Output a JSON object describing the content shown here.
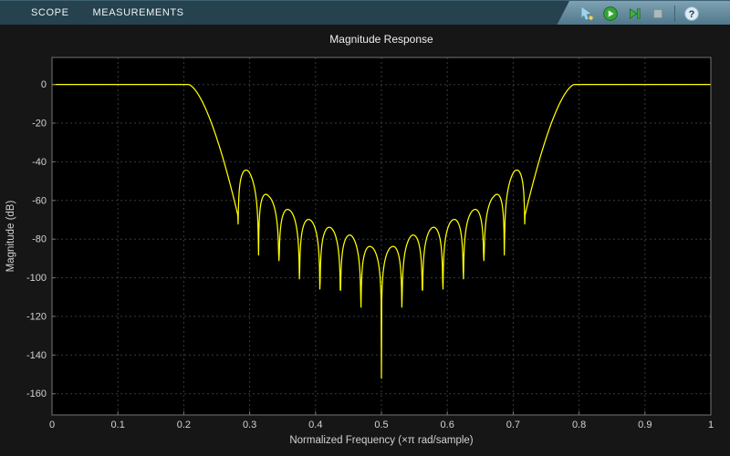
{
  "toolbar": {
    "tabs": [
      {
        "label": "SCOPE"
      },
      {
        "label": "MEASUREMENTS"
      }
    ],
    "buttons": [
      {
        "name": "pointer-tool",
        "tooltip": "Pointer"
      },
      {
        "name": "run",
        "tooltip": "Run"
      },
      {
        "name": "step-forward",
        "tooltip": "Step Forward"
      },
      {
        "name": "stop",
        "tooltip": "Stop"
      },
      {
        "name": "help",
        "tooltip": "Help"
      }
    ],
    "help_glyph": "?"
  },
  "chart_data": {
    "type": "line",
    "title": "Magnitude Response",
    "xlabel": "Normalized Frequency (×π rad/sample)",
    "ylabel": "Magnitude (dB)",
    "xlim": [
      0,
      1
    ],
    "ylim": [
      -171,
      14
    ],
    "xticks": [
      0,
      0.1,
      0.2,
      0.3,
      0.4,
      0.5,
      0.6,
      0.7,
      0.8,
      0.9,
      1
    ],
    "xtick_labels": [
      "0",
      "0.1",
      "0.2",
      "0.3",
      "0.4",
      "0.5",
      "0.6",
      "0.7",
      "0.8",
      "0.9",
      "1"
    ],
    "yticks": [
      0,
      -20,
      -40,
      -60,
      -80,
      -100,
      -120,
      -140,
      -160
    ],
    "ytick_labels": [
      "0",
      "-20",
      "-40",
      "-60",
      "-80",
      "-100",
      "-120",
      "-140",
      "-160"
    ],
    "grid": true,
    "legend": "none",
    "line_color": "#ffff00",
    "series_name": "bandstop filter magnitude response",
    "response": {
      "shape": "bandstop",
      "passband_level_db": 0,
      "passband_edges_xpi": [
        0.207,
        0.793
      ],
      "stopband_first_null_offset_xpi": 0.2177,
      "null_spacing_xpi": 0.0311,
      "notch_freq_xpi": 0.5,
      "notch_depth_db": -152,
      "transition_depth_db": -68,
      "envelope_center_db": -86,
      "envelope_edge_db": -40,
      "sidelobe_peaks": [
        {
          "offset_xpi": 0.0155,
          "db": -84
        },
        {
          "offset_xpi": 0.0465,
          "db": -78
        },
        {
          "offset_xpi": 0.0775,
          "db": -74
        },
        {
          "offset_xpi": 0.1085,
          "db": -70
        },
        {
          "offset_xpi": 0.1395,
          "db": -65
        },
        {
          "offset_xpi": 0.1705,
          "db": -58
        },
        {
          "offset_xpi": 0.2015,
          "db": -45
        }
      ]
    }
  },
  "colors": {
    "curve": "#ffff00",
    "plot_bg": "#000000",
    "figure_bg": "#161616",
    "grid": "#3a3a3a",
    "axis_border": "#737373",
    "tick_text": "#d2d2d2",
    "toolbar_bg": "#26424f",
    "toolbar_panel": "#5b8196"
  }
}
